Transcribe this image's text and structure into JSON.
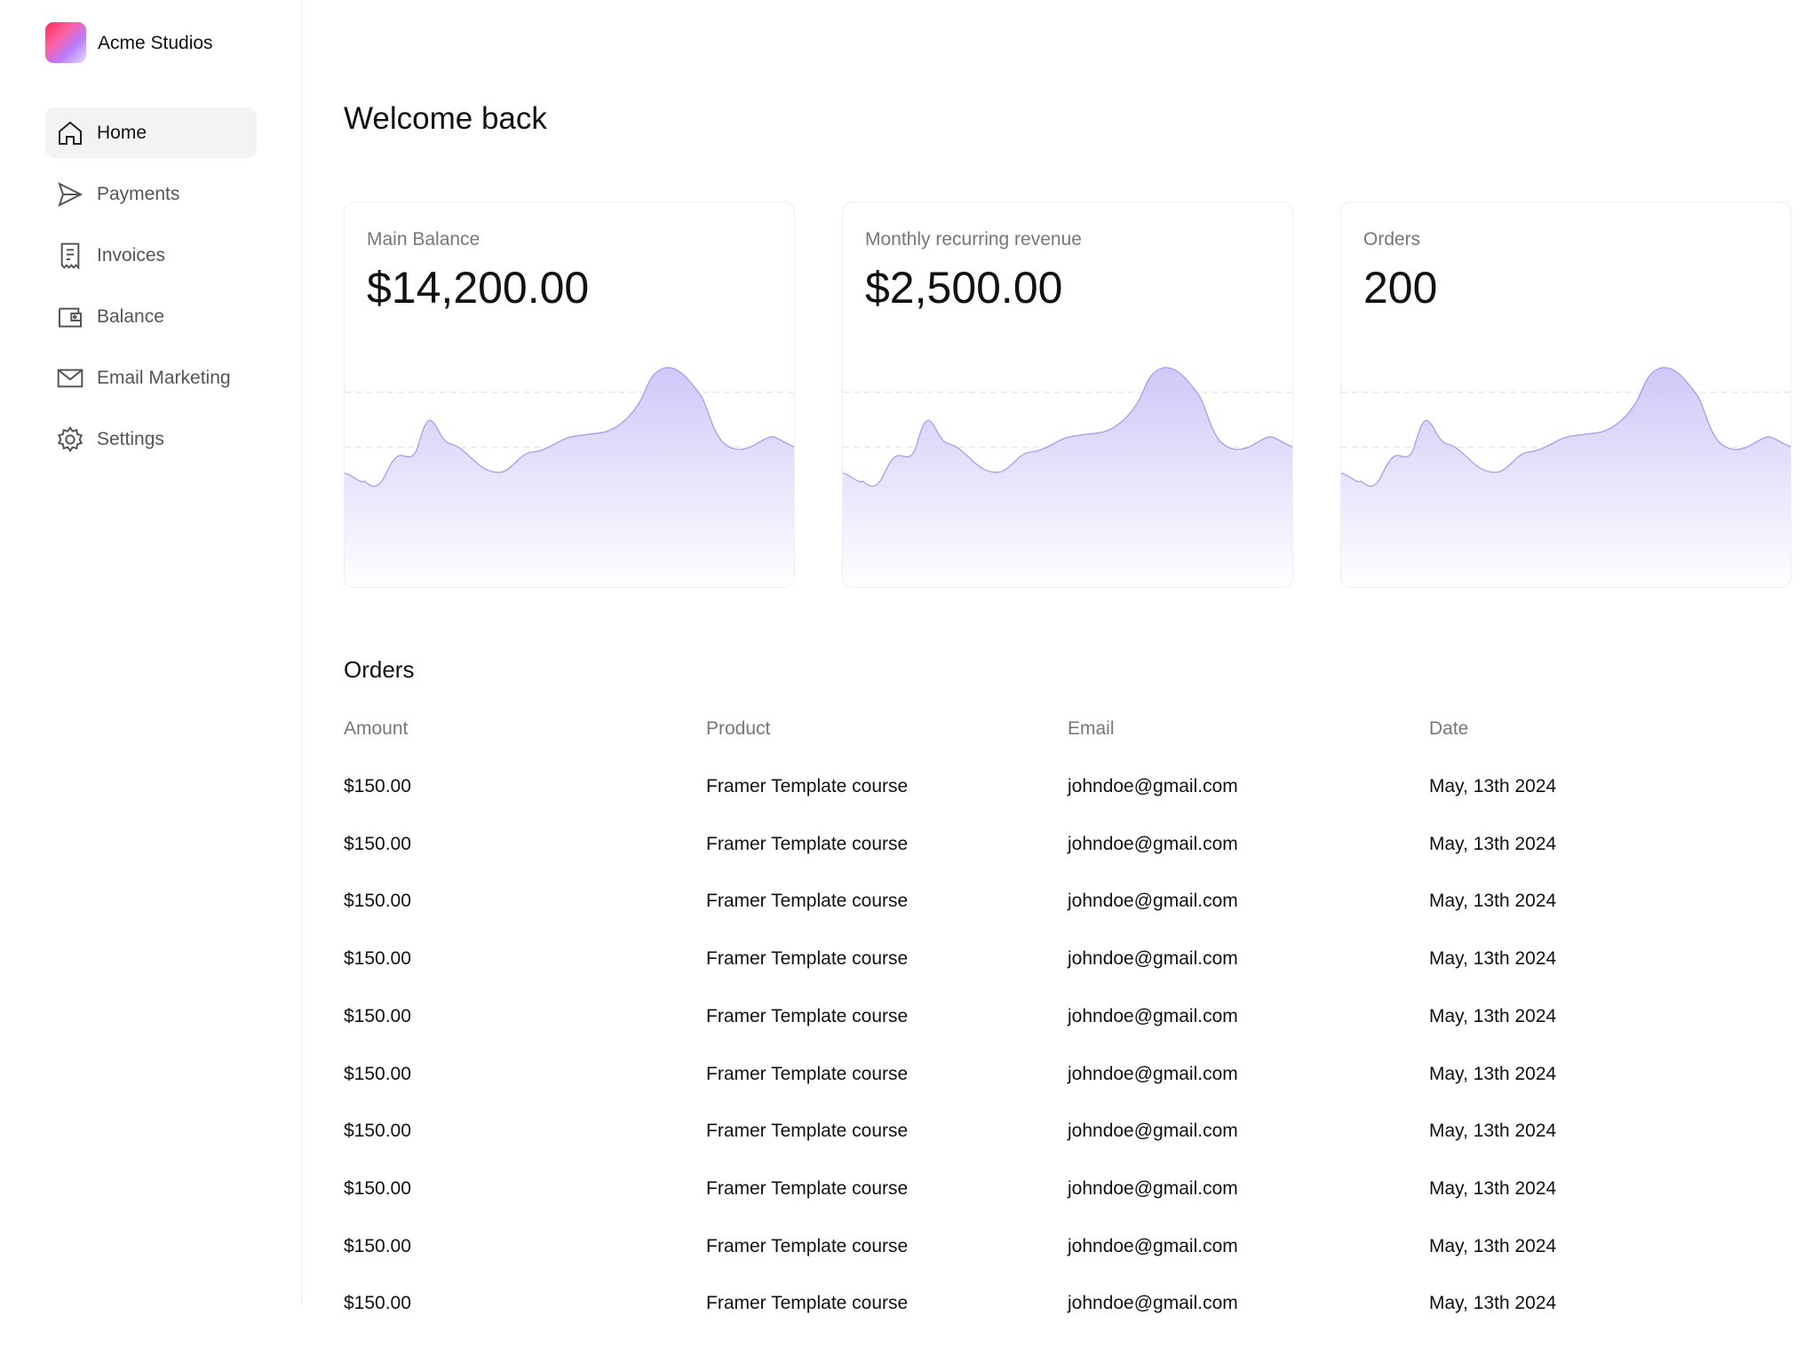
{
  "sidebar": {
    "brand": "Acme Studios",
    "nav": [
      "Home",
      "Payments",
      "Invoices",
      "Balance",
      "Email Marketing",
      "Settings"
    ]
  },
  "header": {
    "title": "Welcome back"
  },
  "cards": [
    {
      "label": "Main Balance",
      "value": "$14,200.00"
    },
    {
      "label": "Monthly recurring revenue",
      "value": "$2,500.00"
    },
    {
      "label": "Orders",
      "value": "200"
    }
  ],
  "orders": {
    "title": "Orders",
    "columns": [
      "Amount",
      "Product",
      "Email",
      "Date"
    ],
    "rows": [
      [
        "$150.00",
        "Framer Template course",
        "johndoe@gmail.com",
        "May, 13th 2024"
      ],
      [
        "$150.00",
        "Framer Template course",
        "johndoe@gmail.com",
        "May, 13th 2024"
      ],
      [
        "$150.00",
        "Framer Template course",
        "johndoe@gmail.com",
        "May, 13th 2024"
      ],
      [
        "$150.00",
        "Framer Template course",
        "johndoe@gmail.com",
        "May, 13th 2024"
      ],
      [
        "$150.00",
        "Framer Template course",
        "johndoe@gmail.com",
        "May, 13th 2024"
      ],
      [
        "$150.00",
        "Framer Template course",
        "johndoe@gmail.com",
        "May, 13th 2024"
      ],
      [
        "$150.00",
        "Framer Template course",
        "johndoe@gmail.com",
        "May, 13th 2024"
      ],
      [
        "$150.00",
        "Framer Template course",
        "johndoe@gmail.com",
        "May, 13th 2024"
      ],
      [
        "$150.00",
        "Framer Template course",
        "johndoe@gmail.com",
        "May, 13th 2024"
      ],
      [
        "$150.00",
        "Framer Template course",
        "johndoe@gmail.com",
        "May, 13th 2024"
      ]
    ]
  }
}
